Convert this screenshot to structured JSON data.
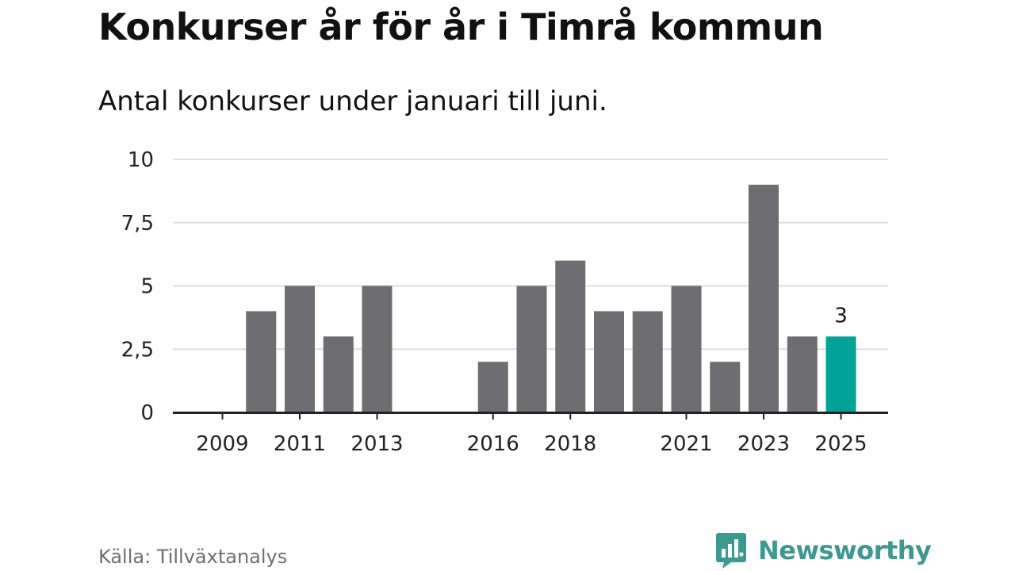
{
  "header": {
    "title": "Konkurser år för år i Timrå kommun",
    "subtitle": "Antal konkurser under januari till juni."
  },
  "footer": {
    "source": "Källa: Tillväxtanalys",
    "brand": "Newsworthy",
    "brand_icon": "bar-chart-speech-bubble-icon"
  },
  "colors": {
    "bar": "#6e6d72",
    "highlight": "#00a398",
    "grid": "#dddddd",
    "axis": "#222222",
    "brand": "#3a9a92"
  },
  "chart_data": {
    "type": "bar",
    "x": [
      2009,
      2010,
      2011,
      2012,
      2013,
      2014,
      2015,
      2016,
      2017,
      2018,
      2019,
      2020,
      2021,
      2022,
      2023,
      2024,
      2025
    ],
    "values": [
      0,
      4,
      5,
      3,
      5,
      0,
      0,
      2,
      5,
      6,
      4,
      4,
      5,
      2,
      9,
      3,
      3
    ],
    "highlight_index": 16,
    "data_labels": [
      {
        "index": 16,
        "text": "3"
      }
    ],
    "xticks": [
      "2009",
      "2011",
      "2013",
      "2016",
      "2018",
      "2021",
      "2023",
      "2025"
    ],
    "yticks": [
      "0",
      "2,5",
      "5",
      "7,5",
      "10"
    ],
    "ylim": [
      0,
      10
    ],
    "grid": true,
    "legend": "none"
  }
}
